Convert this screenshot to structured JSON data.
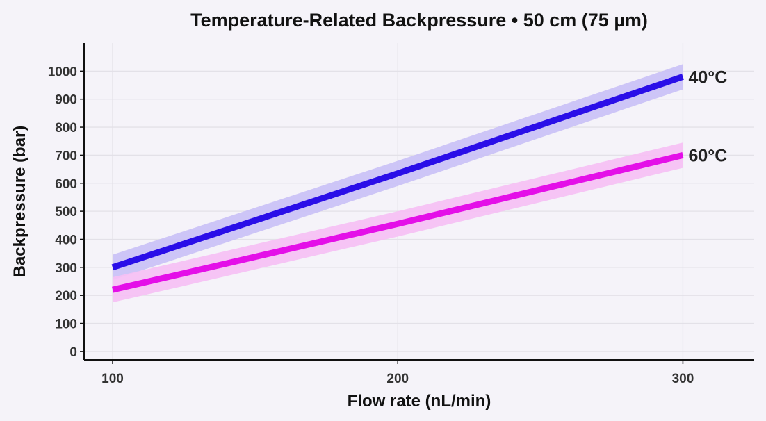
{
  "chart_data": {
    "type": "line",
    "title": "Temperature-Related Backpressure • 50 cm (75 µm)",
    "xlabel": "Flow rate (nL/min)",
    "ylabel": "Backpressure (bar)",
    "xlim": [
      90,
      325
    ],
    "ylim": [
      -30,
      1100
    ],
    "x_ticks": [
      100,
      200,
      300
    ],
    "y_ticks": [
      0,
      100,
      200,
      300,
      400,
      500,
      600,
      700,
      800,
      900,
      1000
    ],
    "grid": true,
    "x": [
      100,
      200,
      300
    ],
    "series": [
      {
        "name": "40°C",
        "values": [
          300,
          635,
          980
        ],
        "band_lower": [
          255,
          590,
          935
        ],
        "band_upper": [
          345,
          680,
          1025
        ],
        "color": "#2a0ee8",
        "band_color": "#c9c0f6"
      },
      {
        "name": "60°C",
        "values": [
          220,
          455,
          700
        ],
        "band_lower": [
          175,
          410,
          655
        ],
        "band_upper": [
          265,
          500,
          745
        ],
        "color": "#e40fe8",
        "band_color": "#f6bff4"
      }
    ]
  }
}
